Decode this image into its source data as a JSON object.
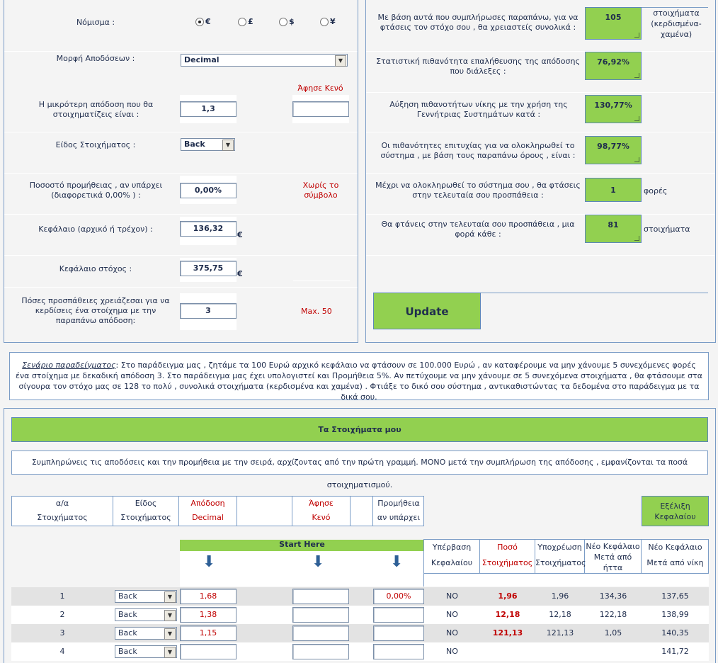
{
  "left_form": {
    "currency_label": "Νόμισμα :",
    "currency_options": [
      "€",
      "£",
      "$",
      "¥"
    ],
    "currency_selected": "€",
    "odds_format_label": "Μορφή Αποδόσεων :",
    "odds_format_value": "Decimal",
    "leave_blank": "Άφησε Κενό",
    "min_odds_label": "Η μικρότερη απόδοση που θα στοιχηματίζεις είναι :",
    "min_odds_value": "1,3",
    "min_odds_blank_value": "",
    "bet_type_label": "Είδος Στοιχήματος :",
    "bet_type_value": "Back",
    "commission_label": "Ποσοστό προμήθειας , αν υπάρχει (διαφορετικά 0,00% ) :",
    "commission_value": "0,00%",
    "commission_note": "Χωρίς το σύμβολο",
    "capital_label": "Κεφάλαιο (αρχικό ή τρέχον) :",
    "capital_value": "136,32",
    "capital_unit": "€",
    "target_label": "Κεφάλαιο στόχος :",
    "target_value": "375,75",
    "target_unit": "€",
    "attempts_label": "Πόσες προσπάθειες χρειάζεσαι για να κερδίσεις ένα στοίχημα με την παραπάνω απόδοση:",
    "attempts_value": "3",
    "attempts_note": "Max. 50"
  },
  "right_results": {
    "total_bets_label": "Με βάση αυτά που συμπλήρωσες παραπάνω, για να φτάσεις τον στόχο σου , θα χρειαστείς συνολικά :",
    "total_bets_value": "105",
    "total_bets_unit": "στοιχήματα (κερδισμένα-χαμένα)",
    "probability_label": "Στατιστική πιθανότητα επαλήθευσης της απόδοσης που διάλεξες :",
    "probability_value": "76,92%",
    "increase_label": "Αύξηση πιθανοτήτων νίκης με την χρήση της Γεννήτριας Συστημάτων κατά :",
    "increase_value": "130,77%",
    "success_label": "Οι πιθανότητες επιτυχίας για να ολοκληρωθεί το σύστημα , με βάση τους παραπάνω όρους , είναι :",
    "success_value": "98,77%",
    "last_attempt_label": "Μέχρι να ολοκληρωθεί το σύστημα σου , θα φτάσεις στην τελευταία σου προσπάθεια :",
    "last_attempt_value": "1",
    "last_attempt_unit": "φορές",
    "every_label": "Θα φτάνεις στην τελευταία σου προσπάθεια , μια φορά κάθε :",
    "every_value": "81",
    "every_unit": "στοιχήματα",
    "update_button": "Update"
  },
  "example": {
    "title": "Σενάριο παραδείγματος",
    "text": ": Στο παράδειγμα μας , ζητάμε τα 100 Ευρώ αρχικό κεφάλαιο να φτάσουν σε 100.000 Ευρώ , αν καταφέρουμε να μην χάνουμε 5 συνεχόμενες φορές ένα στοίχημα με δεκαδική απόδοση 3. Στο παράδειγμα μας έχει υπολογιστεί και Προμήθεια 5%. Αν πετύχουμε να μην χάνουμε σε 5 συνεχόμενα στοιχήματα , θα φτάσουμε στα σίγουρα τον στόχο μας σε 128 το πολύ , συνολικά στοιχήματα (κερδισμένα και χαμένα) . Φτιάξε το δικό σου σύστημα , αντικαθιστώντας τα δεδομένα στο παράδειγμα με τα δικά σου."
  },
  "bets": {
    "title": "Τα Στοιχήματα μου",
    "instructions": "Συμπληρώνεις τις αποδόσεις και την προμήθεια με την σειρά, αρχίζοντας από την πρώτη γραμμή. ΜΟΝΟ μετά την συμπλήρωση της απόδοσης , εμφανίζονται τα ποσά στοιχηματισμού.",
    "headers": {
      "num_1": "α/α",
      "num_2": "Στοιχήματος",
      "type_1": "Είδος",
      "type_2": "Στοιχήματος",
      "odds_1": "Απόδοση",
      "odds_2": "Decimal",
      "blank_1": "Άφησε",
      "blank_2": "Κενό",
      "comm_1": "Προμήθεια",
      "comm_2": "αν υπάρχει",
      "evol": "Εξέλιξη Κεφαλαίου",
      "start_here": "Start Here",
      "exceed_1": "Υπέρβαση",
      "exceed_2": "Κεφαλαίου",
      "stake_1": "Ποσό",
      "stake_2": "Στοιχήματος",
      "liab_1": "Υποχρέωση",
      "liab_2": "Στοιχήματος",
      "after_loss": "Νέο Κεφάλαιο Μετά από ήττα",
      "after_win": "Νέο Κεφάλαιο Μετά από νίκη"
    },
    "rows": [
      {
        "n": "1",
        "type": "Back",
        "odds": "1,68",
        "blank": "",
        "comm": "0,00%",
        "exceed": "NO",
        "stake": "1,96",
        "liab": "1,96",
        "loss": "134,36",
        "win": "137,65"
      },
      {
        "n": "2",
        "type": "Back",
        "odds": "1,38",
        "blank": "",
        "comm": "",
        "exceed": "NO",
        "stake": "12,18",
        "liab": "12,18",
        "loss": "122,18",
        "win": "138,99"
      },
      {
        "n": "3",
        "type": "Back",
        "odds": "1,15",
        "blank": "",
        "comm": "",
        "exceed": "NO",
        "stake": "121,13",
        "liab": "121,13",
        "loss": "1,05",
        "win": "140,35"
      },
      {
        "n": "4",
        "type": "Back",
        "odds": "",
        "blank": "",
        "comm": "",
        "exceed": "NO",
        "stake": "",
        "liab": "",
        "loss": "",
        "win": "141,72"
      }
    ]
  },
  "colors": {
    "green": "#92d050",
    "border": "#5b87b8",
    "red": "#c00000",
    "text": "#1f2d4d"
  }
}
